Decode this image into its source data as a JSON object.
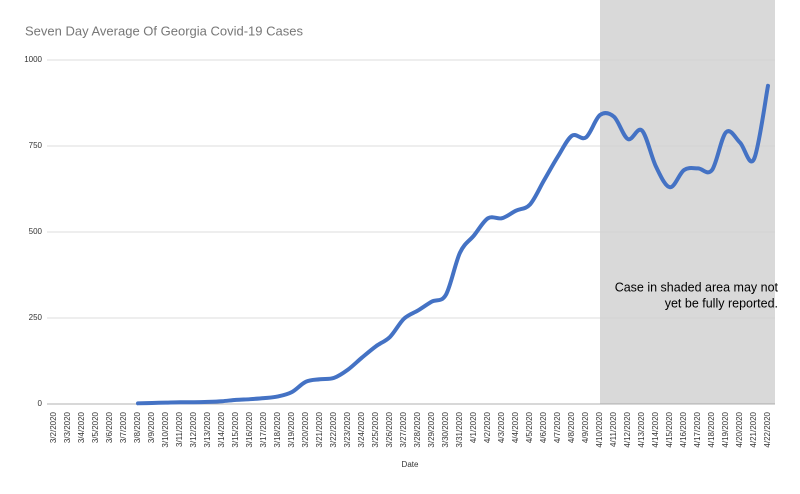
{
  "chart_data": {
    "type": "line",
    "title": "Seven Day Average Of Georgia Covid-19 Cases",
    "x_label": "Date",
    "annotation": [
      "Case in shaded area may not",
      "yet be fully reported."
    ],
    "shade_start": "4/10/2020",
    "categories": [
      "3/2/2020",
      "3/3/2020",
      "3/4/2020",
      "3/5/2020",
      "3/6/2020",
      "3/7/2020",
      "3/8/2020",
      "3/9/2020",
      "3/10/2020",
      "3/11/2020",
      "3/12/2020",
      "3/13/2020",
      "3/14/2020",
      "3/15/2020",
      "3/16/2020",
      "3/17/2020",
      "3/18/2020",
      "3/19/2020",
      "3/20/2020",
      "3/21/2020",
      "3/22/2020",
      "3/23/2020",
      "3/24/2020",
      "3/25/2020",
      "3/26/2020",
      "3/27/2020",
      "3/28/2020",
      "3/29/2020",
      "3/30/2020",
      "3/31/2020",
      "4/1/2020",
      "4/2/2020",
      "4/3/2020",
      "4/4/2020",
      "4/5/2020",
      "4/6/2020",
      "4/7/2020",
      "4/8/2020",
      "4/9/2020",
      "4/10/2020",
      "4/11/2020",
      "4/12/2020",
      "4/13/2020",
      "4/14/2020",
      "4/15/2020",
      "4/16/2020",
      "4/17/2020",
      "4/18/2020",
      "4/19/2020",
      "4/20/2020",
      "4/21/2020",
      "4/22/2020"
    ],
    "series": [
      {
        "color": "#4472c4",
        "values": [
          null,
          null,
          null,
          null,
          null,
          null,
          2,
          3,
          4,
          5,
          5,
          6,
          8,
          12,
          14,
          17,
          22,
          35,
          65,
          72,
          76,
          100,
          135,
          168,
          195,
          248,
          272,
          298,
          318,
          440,
          490,
          540,
          540,
          562,
          580,
          650,
          720,
          780,
          775,
          840,
          835,
          770,
          795,
          690,
          630,
          680,
          685,
          680,
          790,
          760,
          712,
          925
        ]
      }
    ],
    "ylim": [
      0,
      1000
    ],
    "yticks": [
      0,
      250,
      500,
      750,
      1000
    ],
    "grid": true
  }
}
